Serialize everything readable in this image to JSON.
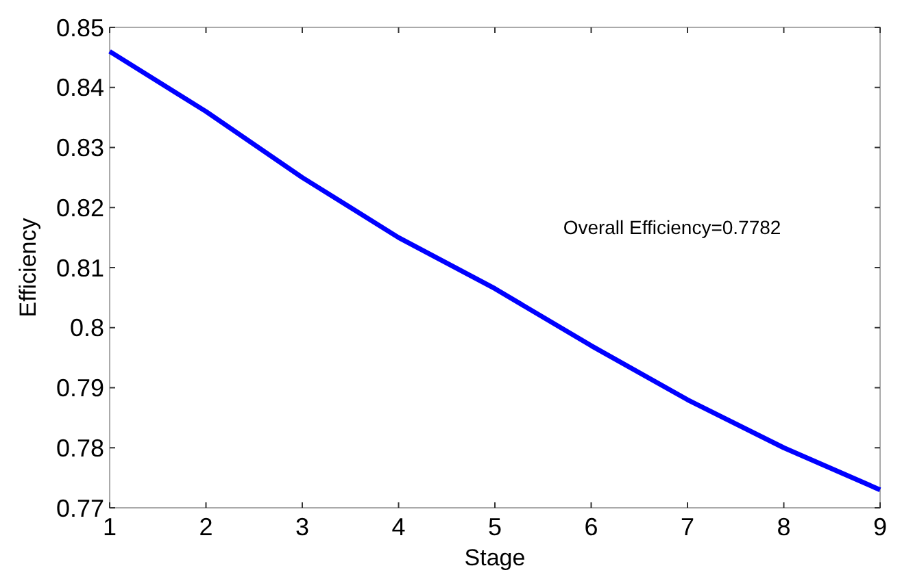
{
  "chart_data": {
    "type": "line",
    "xlabel": "Stage",
    "ylabel": "Efficiency",
    "x": [
      1,
      2,
      3,
      4,
      5,
      6,
      7,
      8,
      9
    ],
    "series": [
      {
        "color": "#0000ff",
        "values": [
          0.846,
          0.836,
          0.825,
          0.815,
          0.8065,
          0.797,
          0.788,
          0.78,
          0.773
        ]
      }
    ],
    "xlim": [
      1,
      9
    ],
    "xticks": [
      1,
      2,
      3,
      4,
      5,
      6,
      7,
      8,
      9
    ],
    "ylim": [
      0.77,
      0.85
    ],
    "yticks": [
      0.77,
      {
        "value": 0.78,
        "label": "0.78"
      },
      0.79,
      {
        "value": 0.8,
        "label": "0.8"
      },
      0.81,
      0.82,
      0.83,
      0.84,
      0.85
    ],
    "annotations": [
      "Overall Efficiency=0.7782"
    ],
    "grid": false,
    "marker": "none",
    "line_style": "solid"
  }
}
